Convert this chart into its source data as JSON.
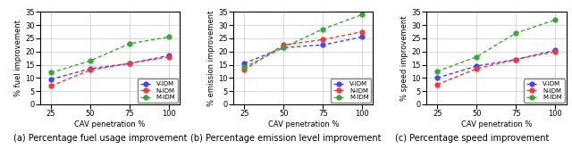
{
  "x": [
    25,
    50,
    75,
    100
  ],
  "fuel": {
    "V-IDM": [
      9.5,
      13.5,
      15.5,
      18.5
    ],
    "N-IDM": [
      7.0,
      13.0,
      15.5,
      18.0
    ],
    "M-IDM": [
      12.0,
      16.5,
      23.0,
      25.5
    ]
  },
  "emission": {
    "V-IDM": [
      15.5,
      21.5,
      22.5,
      25.5
    ],
    "N-IDM": [
      13.0,
      22.5,
      24.5,
      27.5
    ],
    "M-IDM": [
      14.0,
      21.5,
      28.5,
      34.0
    ]
  },
  "speed": {
    "V-IDM": [
      10.0,
      14.5,
      17.0,
      20.5
    ],
    "N-IDM": [
      7.5,
      13.5,
      17.0,
      20.0
    ],
    "M-IDM": [
      12.5,
      18.0,
      27.0,
      32.0
    ]
  },
  "colors": {
    "V-IDM": "#4444ff",
    "N-IDM": "#ff3333",
    "M-IDM": "#33aa33"
  },
  "ylim": [
    0,
    35
  ],
  "yticks": [
    0,
    5,
    10,
    15,
    20,
    25,
    30,
    35
  ],
  "xticks": [
    25,
    50,
    75,
    100
  ],
  "xlabel": "CAV penetration %",
  "ylabels": [
    "% fuel improvement",
    "% emission improvement",
    "% speed improvement"
  ],
  "subtitles": [
    "(a) Percentage fuel usage improvement",
    "(b) Percentage emission level improvement",
    "(c) Percentage speed improvement"
  ],
  "tick_fontsize": 6,
  "label_fontsize": 6,
  "legend_fontsize": 5,
  "subtitle_fontsize": 7
}
